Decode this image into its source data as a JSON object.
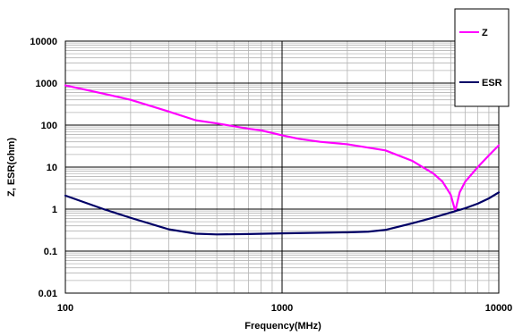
{
  "chart_data": {
    "type": "line",
    "xlabel": "Frequency(MHz)",
    "ylabel": "Z, ESR(ohm)",
    "x_scale": "log",
    "y_scale": "log",
    "xlim": [
      100,
      10000
    ],
    "ylim": [
      0.01,
      10000
    ],
    "x_ticks": [
      "100",
      "1000",
      "10000"
    ],
    "y_ticks": [
      "0.01",
      "0.1",
      "1",
      "10",
      "100",
      "1000",
      "10000"
    ],
    "grid": true,
    "legend_position": "top-right",
    "series": [
      {
        "name": "Z",
        "color": "#ff00ff",
        "x": [
          100,
          150,
          200,
          300,
          400,
          500,
          700,
          800,
          1000,
          1200,
          1500,
          2000,
          3000,
          4000,
          5000,
          5500,
          6000,
          6300,
          6600,
          7000,
          8000,
          9000,
          10000
        ],
        "y": [
          880,
          560,
          400,
          210,
          130,
          110,
          82,
          75,
          57,
          47,
          40,
          35,
          25,
          14,
          7,
          4.5,
          2.2,
          0.9,
          2.5,
          4.5,
          10,
          19,
          33
        ]
      },
      {
        "name": "ESR",
        "color": "#000066",
        "x": [
          100,
          150,
          200,
          300,
          400,
          500,
          700,
          1000,
          2000,
          2500,
          3000,
          4000,
          5000,
          6000,
          7000,
          8000,
          9000,
          10000
        ],
        "y": [
          2.1,
          1.0,
          0.62,
          0.33,
          0.26,
          0.25,
          0.255,
          0.265,
          0.28,
          0.29,
          0.32,
          0.46,
          0.63,
          0.83,
          1.05,
          1.35,
          1.8,
          2.5
        ]
      }
    ]
  }
}
